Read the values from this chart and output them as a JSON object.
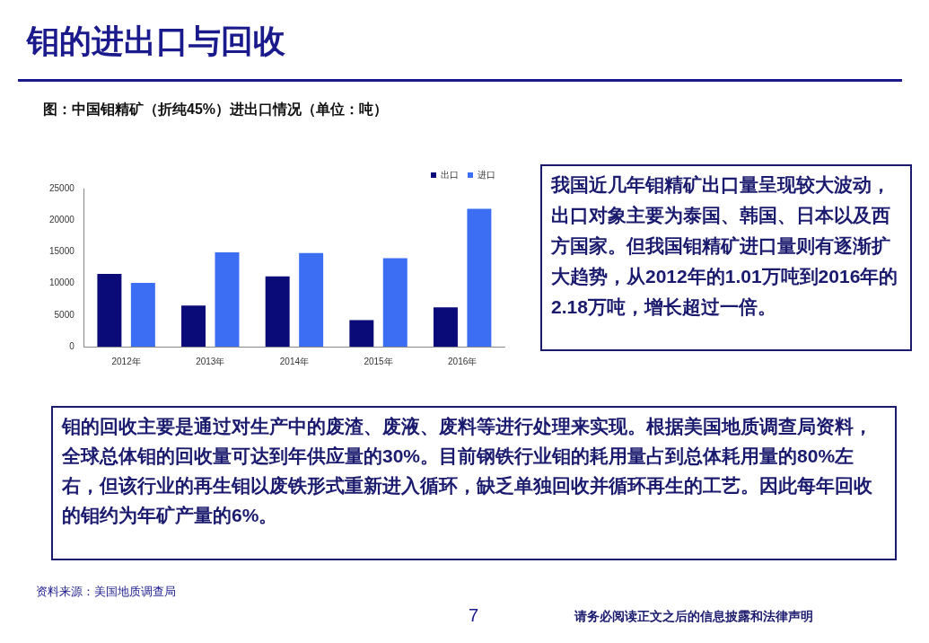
{
  "chart_data": {
    "type": "bar",
    "title": "钼的进出口与回收",
    "subtitle": "图：中国钼精矿（折纯45%）进出口情况（单位：吨）",
    "categories": [
      "2012年",
      "2013年",
      "2014年",
      "2015年",
      "2016年"
    ],
    "series": [
      {
        "name": "出口",
        "color": "#0a0a78",
        "values": [
          11500,
          6500,
          11100,
          4200,
          6200
        ]
      },
      {
        "name": "进口",
        "color": "#3b6ef2",
        "values": [
          10100,
          14900,
          14800,
          14000,
          21800
        ]
      }
    ],
    "ylim": [
      0,
      25000
    ],
    "yticks": [
      0,
      5000,
      10000,
      15000,
      20000,
      25000
    ],
    "grid": false,
    "legend": "top right",
    "annotations": [
      "我国近几年钼精矿出口量呈现较大波动，出口对象主要为泰国、韩国、日本以及西方国家。但我国钼精矿进口量则有逐渐扩大趋势，从2012年的1.01万吨到2016年的2.18万吨，增长超过一倍。",
      "钼的回收主要是通过对生产中的废渣、废液、废料等进行处理来实现。根据美国地质调查局资料，全球总体钼的回收量可达到年供应量的30%。目前钢铁行业钼的耗用量占到总体耗用量的80%左右，但该行业的再生钼以废铁形式重新进入循环，缺乏单独回收并循环再生的工艺。因此每年回收的钼约为年矿产量的6%。",
      "资料来源：美国地质调查局",
      "7",
      "请务必阅读正文之后的信息披露和法律声明"
    ]
  }
}
